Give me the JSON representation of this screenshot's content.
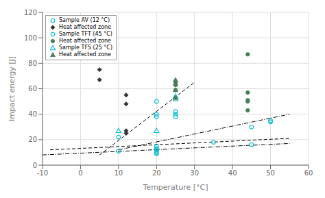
{
  "chart_data": {
    "type": "scatter",
    "xlabel": "Temperature [°C]",
    "ylabel": "Impact energy [J]",
    "xlim": [
      -10,
      60
    ],
    "ylim": [
      0,
      120
    ],
    "xticks": [
      -10,
      0,
      10,
      20,
      30,
      40,
      50,
      60
    ],
    "yticks": [
      0,
      20,
      40,
      60,
      80,
      100,
      120
    ],
    "grid": true,
    "legend": "upper left",
    "series": [
      {
        "name": "Sample AV (12 °C)",
        "color": "#00bcd4",
        "marker": "circle-open",
        "x": [
          10,
          10,
          20,
          20,
          20,
          20,
          35,
          45,
          45,
          50,
          50
        ],
        "values": [
          22,
          11,
          50,
          40,
          38,
          13,
          18,
          16,
          30,
          35,
          34
        ]
      },
      {
        "name": "Heat affected zone",
        "color": "#333333",
        "marker": "diamond",
        "x": [
          5,
          5,
          12,
          12,
          12,
          12
        ],
        "values": [
          75,
          67,
          55,
          48,
          27,
          25
        ]
      },
      {
        "name": "Sample TFT (45 °C)",
        "color": "#00bcd4",
        "marker": "circle-open",
        "x": [
          20,
          20,
          20,
          20,
          20,
          25,
          25,
          25
        ],
        "values": [
          15,
          12,
          11,
          10,
          9,
          42,
          40,
          38
        ]
      },
      {
        "name": "Heat affected zone",
        "color": "#4a7c59",
        "marker": "circle",
        "x": [
          25,
          25,
          25,
          25,
          44,
          44,
          44,
          44,
          44
        ],
        "values": [
          65,
          63,
          59,
          53,
          87,
          57,
          51,
          50,
          43
        ]
      },
      {
        "name": "Sample TFS (25 °C)",
        "color": "#00bcd4",
        "marker": "triangle-open",
        "x": [
          10,
          20,
          25,
          25
        ],
        "values": [
          27,
          27,
          54,
          52
        ]
      },
      {
        "name": "Heat affected zone",
        "color": "#4a7c59",
        "marker": "triangle",
        "x": [
          25,
          25,
          25,
          25
        ],
        "values": [
          67,
          64,
          59,
          53
        ]
      },
      {
        "type": "line",
        "color": "#000000",
        "line_style": "dashdot",
        "x": [
          -10,
          55
        ],
        "values": [
          8,
          17
        ]
      },
      {
        "type": "line",
        "color": "#000000",
        "line_style": "dashed",
        "x": [
          -8,
          55
        ],
        "values": [
          12,
          21
        ]
      },
      {
        "type": "line",
        "color": "#000000",
        "line_style": "dashed",
        "x": [
          5,
          30
        ],
        "values": [
          8,
          65
        ]
      },
      {
        "type": "line",
        "color": "#000000",
        "line_style": "dashdot",
        "x": [
          10,
          55
        ],
        "values": [
          12,
          40
        ]
      }
    ]
  }
}
